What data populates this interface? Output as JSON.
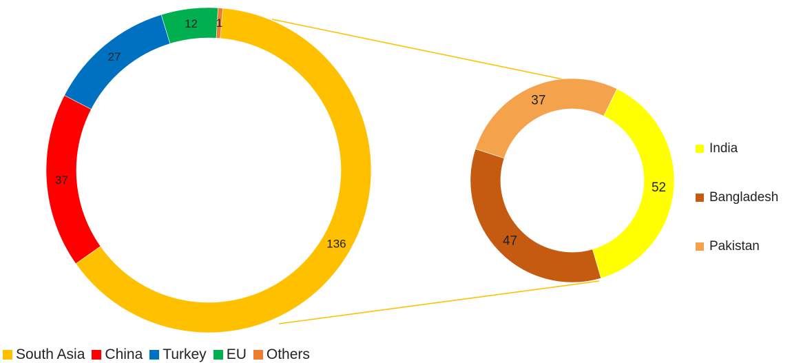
{
  "chart_data": [
    {
      "type": "pie",
      "variant": "doughnut",
      "categories": [
        "South Asia",
        "China",
        "Turkey",
        "EU",
        "Others"
      ],
      "values": [
        136,
        37,
        27,
        12,
        1
      ],
      "colors": [
        "#ffc000",
        "#ff0000",
        "#0070c0",
        "#00b050",
        "#ed7d31"
      ],
      "legend": "bottom"
    },
    {
      "type": "pie",
      "variant": "doughnut",
      "categories": [
        "India",
        "Bangladesh",
        "Pakistan"
      ],
      "values": [
        52,
        47,
        37
      ],
      "colors": [
        "#ffff00",
        "#c55a11",
        "#f4a34c"
      ],
      "legend": "right"
    }
  ]
}
